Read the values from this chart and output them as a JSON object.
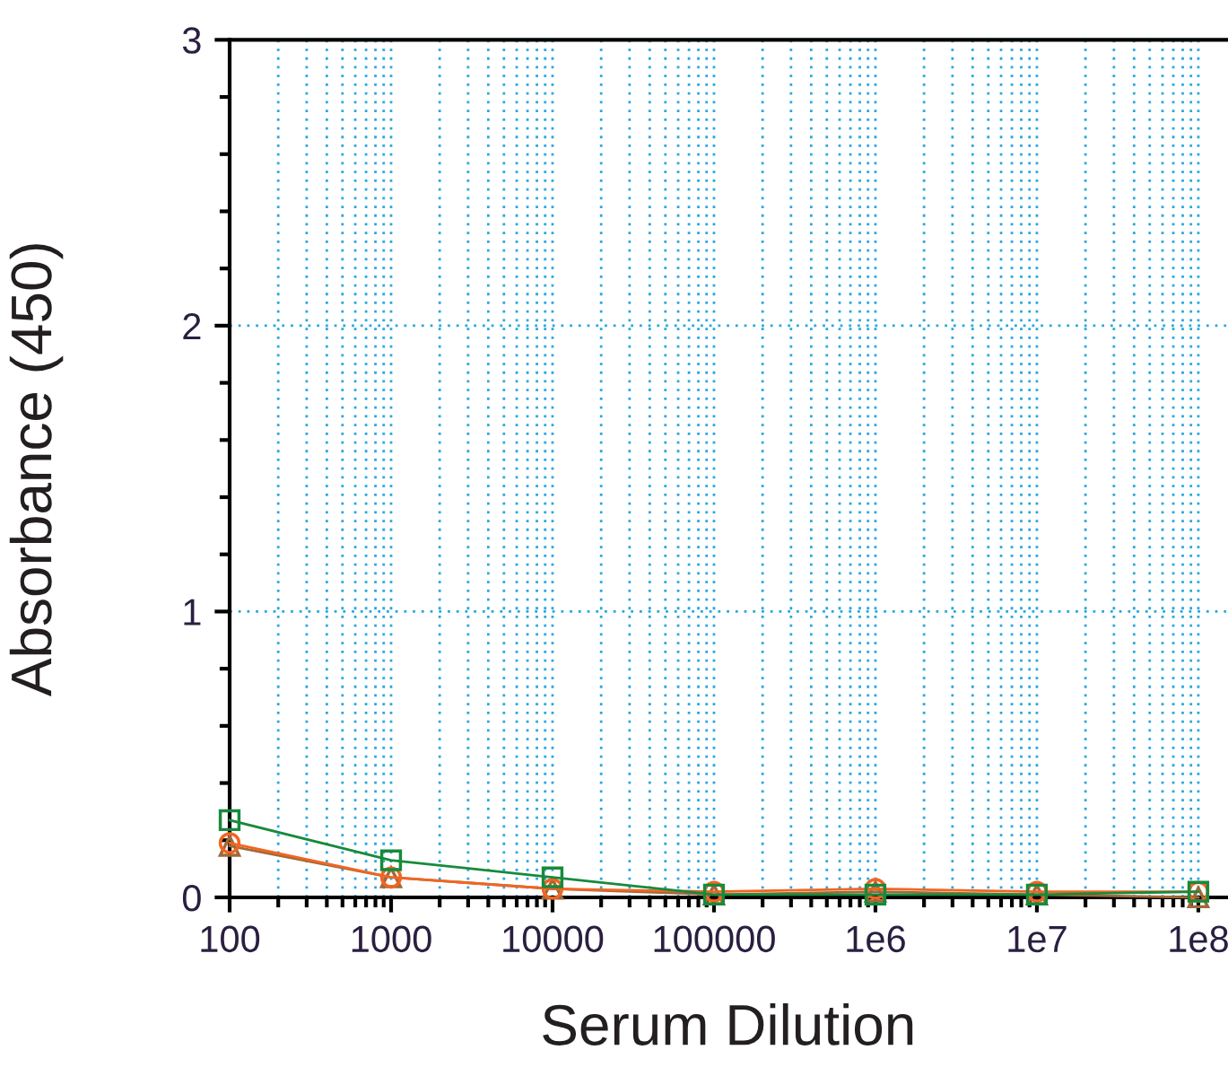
{
  "chart_data": {
    "type": "line",
    "xlabel": "Serum Dilution",
    "ylabel": "Absorbance (450)",
    "x": [
      100,
      1000,
      10000,
      100000,
      1000000,
      10000000,
      100000000
    ],
    "series": [
      {
        "color": "#178a3c",
        "marker": "square",
        "values": [
          0.27,
          0.13,
          0.07,
          0.01,
          0.01,
          0.01,
          0.02
        ]
      },
      {
        "color": "#f26522",
        "marker": "circle",
        "values": [
          0.19,
          0.07,
          0.03,
          0.02,
          0.03,
          0.02,
          0.02
        ]
      },
      {
        "color": "#a0693a",
        "marker": "triangle",
        "values": [
          0.18,
          0.07,
          0.03,
          0.01,
          0.02,
          0.01,
          0.0
        ]
      }
    ],
    "log": "x",
    "xlim": [
      100,
      150000000
    ],
    "ylim": [
      0,
      3
    ],
    "xticks": [
      100,
      1000,
      10000,
      100000,
      {
        "value": 1000000,
        "label": "1e6"
      },
      {
        "value": 10000000,
        "label": "1e7"
      },
      {
        "value": 100000000,
        "label": "1e8"
      }
    ],
    "yticks": [
      0,
      1,
      2,
      3
    ],
    "grid": true,
    "line_style": "solid",
    "legend": false
  }
}
